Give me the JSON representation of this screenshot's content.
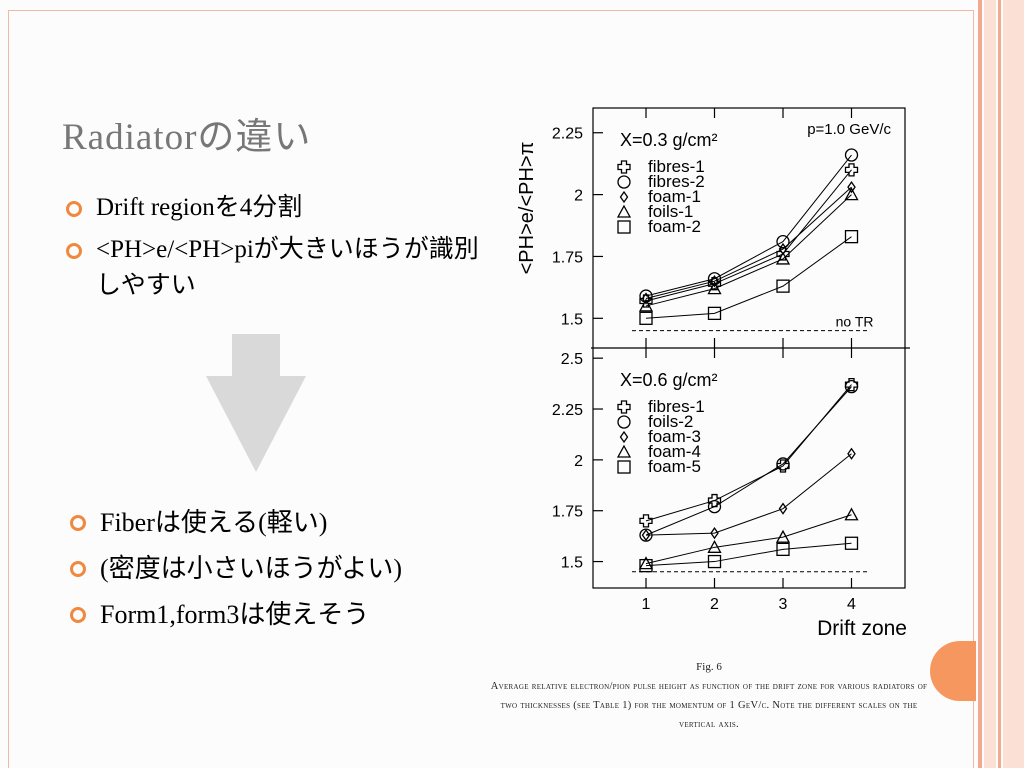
{
  "slide": {
    "title": "Radiatorの違い",
    "bullets_top": [
      "Drift regionを4分割",
      "<PH>e/<PH>piが大きいほうが識別しやすい"
    ],
    "bullets_bottom": [
      "Fiberは使える(軽い)",
      "(密度は小さいほうがよい)",
      "Form1,form3は使えそう"
    ],
    "figure_label": "Fig. 6",
    "caption": "Average relative electron/pion pulse height as function of the drift zone for various radiators of two thicknesses (see Table 1) for the momentum of 1 GeV/c. Note the different scales on the vertical axis.",
    "accent_color": "#f0883e",
    "title_color": "#777777",
    "arrow_color": "#d9d9d9"
  },
  "chart_data": [
    {
      "type": "line",
      "title": "X=0.3 g/cm²",
      "annotation": "p=1.0 GeV/c",
      "ylabel": "<PH>e/<PH>π",
      "xlabel": "",
      "x": [
        1,
        2,
        3,
        4
      ],
      "ylim": [
        1.38,
        2.35
      ],
      "yticks": [
        "1.5",
        "1.75",
        "2",
        "2.25"
      ],
      "reference_line": {
        "y": 1.45,
        "label": "no TR"
      },
      "series": [
        {
          "name": "fibres-1",
          "marker": "plus",
          "values": [
            1.57,
            1.64,
            1.76,
            2.1
          ]
        },
        {
          "name": "fibres-2",
          "marker": "circle",
          "values": [
            1.59,
            1.66,
            1.81,
            2.16
          ]
        },
        {
          "name": "foam-1",
          "marker": "diamond",
          "values": [
            1.58,
            1.65,
            1.78,
            2.03
          ]
        },
        {
          "name": "foils-1",
          "marker": "triangle",
          "values": [
            1.55,
            1.62,
            1.74,
            2.0
          ]
        },
        {
          "name": "foam-2",
          "marker": "square",
          "values": [
            1.5,
            1.52,
            1.63,
            1.83
          ]
        }
      ]
    },
    {
      "type": "line",
      "title": "X=0.6 g/cm²",
      "annotation": "",
      "ylabel": "",
      "xlabel": "Drift zone",
      "x": [
        1,
        2,
        3,
        4
      ],
      "xticks": [
        "1",
        "2",
        "3",
        "4"
      ],
      "ylim": [
        1.37,
        2.55
      ],
      "yticks": [
        "1.5",
        "1.75",
        "2",
        "2.25",
        "2.5"
      ],
      "reference_line": {
        "y": 1.45,
        "label": ""
      },
      "series": [
        {
          "name": "fibres-1",
          "marker": "plus",
          "values": [
            1.7,
            1.8,
            1.97,
            2.37
          ]
        },
        {
          "name": "foils-2",
          "marker": "circle",
          "values": [
            1.63,
            1.77,
            1.98,
            2.36
          ]
        },
        {
          "name": "foam-3",
          "marker": "diamond",
          "values": [
            1.63,
            1.64,
            1.76,
            2.03
          ]
        },
        {
          "name": "foam-4",
          "marker": "triangle",
          "values": [
            1.49,
            1.57,
            1.62,
            1.73
          ]
        },
        {
          "name": "foam-5",
          "marker": "square",
          "values": [
            1.48,
            1.5,
            1.56,
            1.59
          ]
        }
      ]
    }
  ]
}
